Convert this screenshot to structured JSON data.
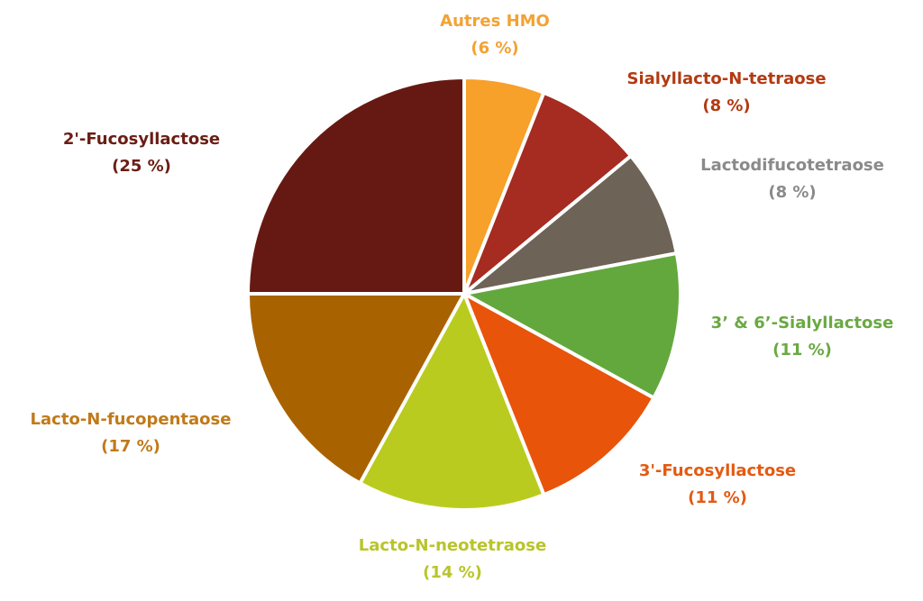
{
  "chart_data": {
    "type": "pie",
    "title": "",
    "start_angle_deg": 0,
    "direction": "clockwise",
    "slices": [
      {
        "name": "Autres HMO",
        "value": 6,
        "value_label": "(6 %)",
        "color": "#F7A02A",
        "label_color": "#F3A234"
      },
      {
        "name": "Sialyllacto-N-tetraose",
        "value": 8,
        "value_label": "(8 %)",
        "color": "#A62B20",
        "label_color": "#B33A12"
      },
      {
        "name": "Lactodifucotetraose",
        "value": 8,
        "value_label": "(8 %)",
        "color": "#6E6357",
        "label_color": "#8A8A8A"
      },
      {
        "name": "3’ & 6’-Sialyllactose",
        "value": 11,
        "value_label": "(11 %)",
        "color": "#63A83D",
        "label_color": "#6AA943"
      },
      {
        "name": "3'-Fucosyllactose",
        "value": 11,
        "value_label": "(11 %)",
        "color": "#E8540A",
        "label_color": "#E45A12"
      },
      {
        "name": "Lacto-N-neotetraose",
        "value": 14,
        "value_label": "(14 %)",
        "color": "#BACB1F",
        "label_color": "#B9C42A"
      },
      {
        "name": "Lacto-N-fucopentaose",
        "value": 17,
        "value_label": "(17 %)",
        "color": "#A96200",
        "label_color": "#C07A1A"
      },
      {
        "name": "2'-Fucosyllactose",
        "value": 25,
        "value_label": "(25 %)",
        "color": "#661912",
        "label_color": "#6A1E14"
      }
    ],
    "legend": "none",
    "separator_color": "#ffffff"
  }
}
